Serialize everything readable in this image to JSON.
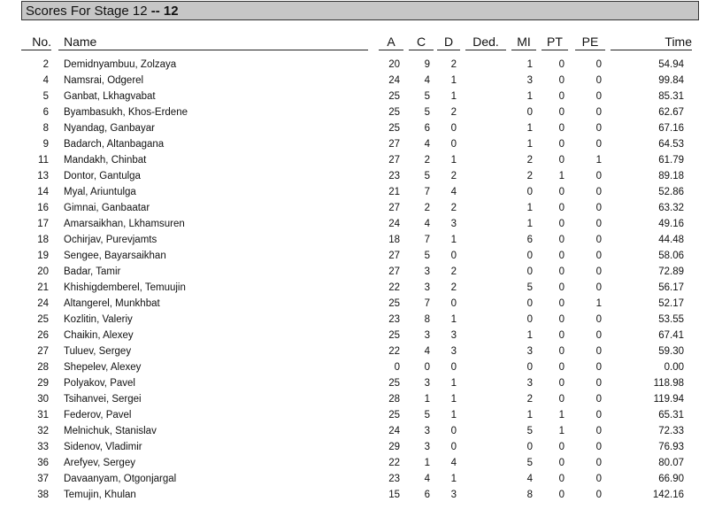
{
  "title": "Scores For Stage 12",
  "title_suffix": "-- 12",
  "columns": [
    "No.",
    "Name",
    "A",
    "C",
    "D",
    "Ded.",
    "MI",
    "PT",
    "PE",
    "Time"
  ],
  "rows": [
    [
      "2",
      "Demidnyambuu, Zolzaya",
      "20",
      "9",
      "2",
      "",
      "1",
      "0",
      "0",
      "54.94"
    ],
    [
      "4",
      "Namsrai, Odgerel",
      "24",
      "4",
      "1",
      "",
      "3",
      "0",
      "0",
      "99.84"
    ],
    [
      "5",
      "Ganbat, Lkhagvabat",
      "25",
      "5",
      "1",
      "",
      "1",
      "0",
      "0",
      "85.31"
    ],
    [
      "6",
      "Byambasukh, Khos-Erdene",
      "25",
      "5",
      "2",
      "",
      "0",
      "0",
      "0",
      "62.67"
    ],
    [
      "8",
      "Nyandag, Ganbayar",
      "25",
      "6",
      "0",
      "",
      "1",
      "0",
      "0",
      "67.16"
    ],
    [
      "9",
      "Badarch, Altanbagana",
      "27",
      "4",
      "0",
      "",
      "1",
      "0",
      "0",
      "64.53"
    ],
    [
      "11",
      "Mandakh, Chinbat",
      "27",
      "2",
      "1",
      "",
      "2",
      "0",
      "1",
      "61.79"
    ],
    [
      "13",
      "Dontor, Gantulga",
      "23",
      "5",
      "2",
      "",
      "2",
      "1",
      "0",
      "89.18"
    ],
    [
      "14",
      "Myal, Ariuntulga",
      "21",
      "7",
      "4",
      "",
      "0",
      "0",
      "0",
      "52.86"
    ],
    [
      "16",
      "Gimnai, Ganbaatar",
      "27",
      "2",
      "2",
      "",
      "1",
      "0",
      "0",
      "63.32"
    ],
    [
      "17",
      "Amarsaikhan, Lkhamsuren",
      "24",
      "4",
      "3",
      "",
      "1",
      "0",
      "0",
      "49.16"
    ],
    [
      "18",
      "Ochirjav, Purevjamts",
      "18",
      "7",
      "1",
      "",
      "6",
      "0",
      "0",
      "44.48"
    ],
    [
      "19",
      "Sengee, Bayarsaikhan",
      "27",
      "5",
      "0",
      "",
      "0",
      "0",
      "0",
      "58.06"
    ],
    [
      "20",
      "Badar, Tamir",
      "27",
      "3",
      "2",
      "",
      "0",
      "0",
      "0",
      "72.89"
    ],
    [
      "21",
      "Khishigdemberel, Temuujin",
      "22",
      "3",
      "2",
      "",
      "5",
      "0",
      "0",
      "56.17"
    ],
    [
      "24",
      "Altangerel, Munkhbat",
      "25",
      "7",
      "0",
      "",
      "0",
      "0",
      "1",
      "52.17"
    ],
    [
      "25",
      "Kozlitin, Valeriy",
      "23",
      "8",
      "1",
      "",
      "0",
      "0",
      "0",
      "53.55"
    ],
    [
      "26",
      "Chaikin, Alexey",
      "25",
      "3",
      "3",
      "",
      "1",
      "0",
      "0",
      "67.41"
    ],
    [
      "27",
      "Tuluev, Sergey",
      "22",
      "4",
      "3",
      "",
      "3",
      "0",
      "0",
      "59.30"
    ],
    [
      "28",
      "Shepelev, Alexey",
      "0",
      "0",
      "0",
      "",
      "0",
      "0",
      "0",
      "0.00"
    ],
    [
      "29",
      "Polyakov, Pavel",
      "25",
      "3",
      "1",
      "",
      "3",
      "0",
      "0",
      "118.98"
    ],
    [
      "30",
      "Tsihanvei, Sergei",
      "28",
      "1",
      "1",
      "",
      "2",
      "0",
      "0",
      "119.94"
    ],
    [
      "31",
      "Federov, Pavel",
      "25",
      "5",
      "1",
      "",
      "1",
      "1",
      "0",
      "65.31"
    ],
    [
      "32",
      "Melnichuk, Stanislav",
      "24",
      "3",
      "0",
      "",
      "5",
      "1",
      "0",
      "72.33"
    ],
    [
      "33",
      "Sidenov, Vladimir",
      "29",
      "3",
      "0",
      "",
      "0",
      "0",
      "0",
      "76.93"
    ],
    [
      "36",
      "Arefyev, Sergey",
      "22",
      "1",
      "4",
      "",
      "5",
      "0",
      "0",
      "80.07"
    ],
    [
      "37",
      "Davaanyam, Otgonjargal",
      "23",
      "4",
      "1",
      "",
      "4",
      "0",
      "0",
      "66.90"
    ],
    [
      "38",
      "Temujin, Khulan",
      "15",
      "6",
      "3",
      "",
      "8",
      "0",
      "0",
      "142.16"
    ]
  ]
}
